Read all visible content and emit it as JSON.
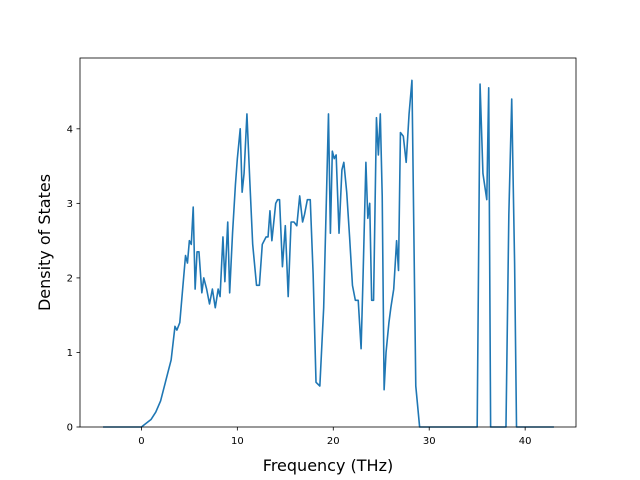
{
  "chart_data": {
    "type": "line",
    "title": "",
    "xlabel": "Frequency (THz)",
    "ylabel": "Density of States",
    "xlim": [
      -6.4,
      45.3
    ],
    "ylim": [
      0,
      4.95
    ],
    "xticks": [
      0,
      10,
      20,
      30,
      40
    ],
    "yticks": [
      0,
      1,
      2,
      3,
      4
    ],
    "grid": false,
    "line_color": "#1f77b4",
    "series": [
      {
        "x": [
          -4.0,
          -2.0,
          0.0,
          0.5,
          1.0,
          1.5,
          2.0,
          2.5,
          2.8,
          3.1,
          3.5,
          3.7,
          4.0,
          4.3,
          4.6,
          4.8,
          5.0,
          5.2,
          5.4,
          5.6,
          5.8,
          6.0,
          6.3,
          6.5,
          6.8,
          7.1,
          7.4,
          7.7,
          8.0,
          8.2,
          8.5,
          8.7,
          9.0,
          9.2,
          9.5,
          9.8,
          10.0,
          10.3,
          10.5,
          10.7,
          11.0,
          11.3,
          11.6,
          12.0,
          12.3,
          12.6,
          13.0,
          13.2,
          13.4,
          13.6,
          14.0,
          14.2,
          14.4,
          14.7,
          15.0,
          15.3,
          15.6,
          15.9,
          16.2,
          16.5,
          16.8,
          17.0,
          17.3,
          17.6,
          17.9,
          18.2,
          18.6,
          19.0,
          19.3,
          19.5,
          19.7,
          19.9,
          20.1,
          20.3,
          20.6,
          20.9,
          21.1,
          21.4,
          21.7,
          22.0,
          22.3,
          22.6,
          22.9,
          23.1,
          23.4,
          23.6,
          23.8,
          24.0,
          24.2,
          24.5,
          24.7,
          24.9,
          25.1,
          25.3,
          25.5,
          25.8,
          26.0,
          26.3,
          26.6,
          26.8,
          27.0,
          27.3,
          27.6,
          27.9,
          28.2,
          28.6,
          29.0,
          30.0,
          32.0,
          34.0,
          35.0,
          35.3,
          35.6,
          36.0,
          36.2,
          36.4,
          36.6,
          37.0,
          38.0,
          38.3,
          38.6,
          38.9,
          39.1,
          39.3,
          40.0,
          43.0
        ],
        "y": [
          0,
          0,
          0,
          0.05,
          0.1,
          0.2,
          0.35,
          0.6,
          0.75,
          0.9,
          1.35,
          1.3,
          1.4,
          1.85,
          2.3,
          2.2,
          2.5,
          2.45,
          2.95,
          1.85,
          2.35,
          2.35,
          1.8,
          2.0,
          1.85,
          1.65,
          1.85,
          1.6,
          1.85,
          1.75,
          2.55,
          1.95,
          2.75,
          1.8,
          2.6,
          3.25,
          3.6,
          4.0,
          3.15,
          3.4,
          4.2,
          3.3,
          2.45,
          1.9,
          1.9,
          2.45,
          2.55,
          2.55,
          2.9,
          2.5,
          3.0,
          3.05,
          3.05,
          2.15,
          2.7,
          1.75,
          2.75,
          2.75,
          2.7,
          3.1,
          2.75,
          2.85,
          3.05,
          3.05,
          2.05,
          0.6,
          0.55,
          1.6,
          3.15,
          4.2,
          2.6,
          3.7,
          3.6,
          3.65,
          2.6,
          3.45,
          3.55,
          3.15,
          2.55,
          1.9,
          1.7,
          1.7,
          1.05,
          2.0,
          3.55,
          2.8,
          3.0,
          1.7,
          1.7,
          4.15,
          3.65,
          4.2,
          3.1,
          0.5,
          1.0,
          1.4,
          1.6,
          1.85,
          2.5,
          2.1,
          3.95,
          3.9,
          3.55,
          4.2,
          4.65,
          0.55,
          0,
          0,
          0,
          0,
          0,
          4.6,
          3.4,
          3.05,
          4.55,
          0,
          0,
          0,
          0,
          2.85,
          4.4,
          2.2,
          0,
          0,
          0,
          0
        ]
      }
    ]
  }
}
